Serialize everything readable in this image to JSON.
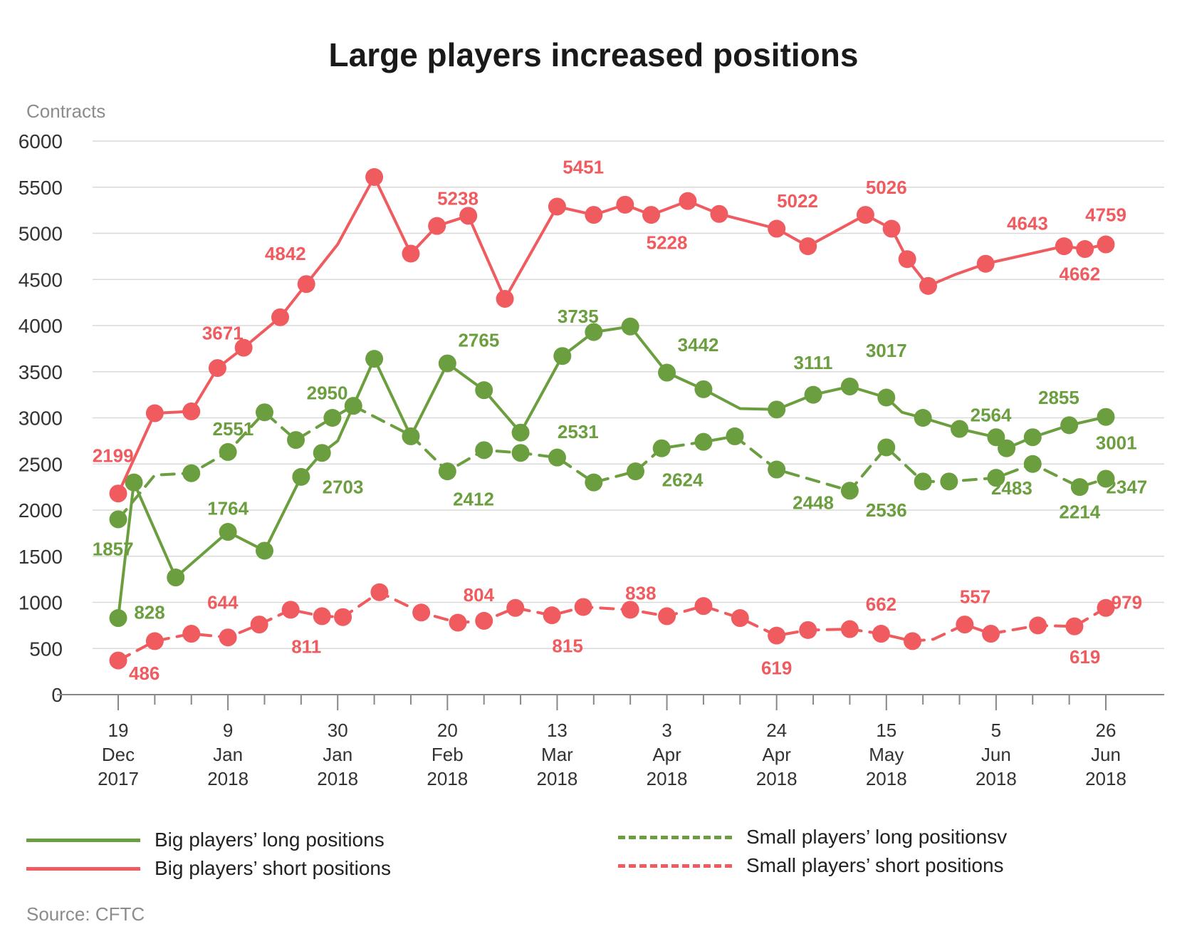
{
  "title": "Large players increased positions",
  "source": "Source: CFTC",
  "colors": {
    "green": "#6a9e3f",
    "red": "#ef5b5f",
    "grid": "#d9d9d9",
    "axis": "#888888",
    "text": "#333333"
  },
  "chart_data": {
    "type": "line",
    "title": "Large players increased positions",
    "ylabel": "Contracts",
    "ylim": [
      0,
      6000
    ],
    "y_ticks": [
      "0",
      "500",
      "1000",
      "1500",
      "2000",
      "2500",
      "3000",
      "3500",
      "4000",
      "4500",
      "5000",
      "5500",
      "6000"
    ],
    "x": [
      "2017-12-19",
      "2017-12-26",
      "2018-01-02",
      "2018-01-09",
      "2018-01-16",
      "2018-01-23",
      "2018-01-30",
      "2018-02-06",
      "2018-02-13",
      "2018-02-20",
      "2018-02-27",
      "2018-03-06",
      "2018-03-13",
      "2018-03-20",
      "2018-03-27",
      "2018-04-03",
      "2018-04-10",
      "2018-04-17",
      "2018-04-24",
      "2018-05-01",
      "2018-05-08",
      "2018-05-15",
      "2018-05-22",
      "2018-05-29",
      "2018-06-05",
      "2018-06-12",
      "2018-06-19",
      "2018-06-26"
    ],
    "x_tick_labels": [
      {
        "day": "19",
        "month": "Dec",
        "year": "2017"
      },
      {
        "day": "9",
        "month": "Jan",
        "year": "2018"
      },
      {
        "day": "30",
        "month": "Jan",
        "year": "2018"
      },
      {
        "day": "20",
        "month": "Feb",
        "year": "2018"
      },
      {
        "day": "13",
        "month": "Mar",
        "year": "2018"
      },
      {
        "day": "3",
        "month": "Apr",
        "year": "2018"
      },
      {
        "day": "24",
        "month": "Apr",
        "year": "2018"
      },
      {
        "day": "15",
        "month": "May",
        "year": "2018"
      },
      {
        "day": "5",
        "month": "Jun",
        "year": "2018"
      },
      {
        "day": "26",
        "month": "Jun",
        "year": "2018"
      }
    ],
    "x_tick_dates": [
      "2017-12-19",
      "2018-01-09",
      "2018-01-30",
      "2018-02-20",
      "2018-03-13",
      "2018-04-03",
      "2018-04-24",
      "2018-05-15",
      "2018-06-05",
      "2018-06-26"
    ],
    "series": [
      {
        "name": "Big players’ long positions",
        "color": "#6a9e3f",
        "dashed": false,
        "points": [
          [
            "2017-12-19",
            830
          ],
          [
            "2017-12-22",
            2300
          ],
          [
            "2017-12-30",
            1270
          ],
          [
            "2018-01-09",
            1764
          ],
          [
            "2018-01-16",
            1560
          ],
          [
            "2018-01-23",
            2360
          ],
          [
            "2018-01-27",
            2620
          ],
          [
            "2018-01-30",
            2750
          ],
          [
            "2018-02-02",
            3130
          ],
          [
            "2018-02-06",
            3640
          ],
          [
            "2018-02-13",
            2800
          ],
          [
            "2018-02-20",
            3590
          ],
          [
            "2018-02-27",
            3300
          ],
          [
            "2018-03-06",
            2840
          ],
          [
            "2018-03-14",
            3670
          ],
          [
            "2018-03-20",
            3930
          ],
          [
            "2018-03-27",
            3990
          ],
          [
            "2018-04-03",
            3490
          ],
          [
            "2018-04-10",
            3310
          ],
          [
            "2018-04-17",
            3100
          ],
          [
            "2018-04-24",
            3090
          ],
          [
            "2018-05-01",
            3250
          ],
          [
            "2018-05-08",
            3340
          ],
          [
            "2018-05-15",
            3220
          ],
          [
            "2018-05-18",
            3060
          ],
          [
            "2018-05-22",
            3000
          ],
          [
            "2018-05-29",
            2880
          ],
          [
            "2018-06-05",
            2790
          ],
          [
            "2018-06-07",
            2670
          ],
          [
            "2018-06-12",
            2790
          ],
          [
            "2018-06-19",
            2920
          ],
          [
            "2018-06-26",
            3010
          ]
        ],
        "markers": [
          "2017-12-19",
          "2017-12-22",
          "2017-12-30",
          "2018-01-09",
          "2018-01-16",
          "2018-01-23",
          "2018-01-27",
          "2018-02-02",
          "2018-02-06",
          "2018-02-13",
          "2018-02-20",
          "2018-02-27",
          "2018-03-06",
          "2018-03-14",
          "2018-03-20",
          "2018-03-27",
          "2018-04-03",
          "2018-04-10",
          "2018-04-24",
          "2018-05-01",
          "2018-05-08",
          "2018-05-15",
          "2018-05-22",
          "2018-05-29",
          "2018-06-05",
          "2018-06-07",
          "2018-06-12",
          "2018-06-19",
          "2018-06-26"
        ],
        "labels": [
          {
            "text": "828",
            "x": "2017-12-25",
            "y": 890
          },
          {
            "text": "1764",
            "x": "2018-01-09",
            "y": 2020
          },
          {
            "text": "2703",
            "x": "2018-01-31",
            "y": 2250
          },
          {
            "text": "2765",
            "x": "2018-02-26",
            "y": 3840
          },
          {
            "text": "3735",
            "x": "2018-03-17",
            "y": 4100
          },
          {
            "text": "3442",
            "x": "2018-04-09",
            "y": 3790
          },
          {
            "text": "3111",
            "x": "2018-05-01",
            "y": 3600
          },
          {
            "text": "3017",
            "x": "2018-05-15",
            "y": 3730
          },
          {
            "text": "2564",
            "x": "2018-06-04",
            "y": 3030
          },
          {
            "text": "2855",
            "x": "2018-06-17",
            "y": 3220
          },
          {
            "text": "3001",
            "x": "2018-06-28",
            "y": 2730
          }
        ]
      },
      {
        "name": "Big players’ short positions",
        "color": "#ef5b5f",
        "dashed": false,
        "points": [
          [
            "2017-12-19",
            2180
          ],
          [
            "2017-12-26",
            3050
          ],
          [
            "2018-01-02",
            3070
          ],
          [
            "2018-01-07",
            3540
          ],
          [
            "2018-01-12",
            3760
          ],
          [
            "2018-01-19",
            4090
          ],
          [
            "2018-01-24",
            4450
          ],
          [
            "2018-01-30",
            4880
          ],
          [
            "2018-02-06",
            5610
          ],
          [
            "2018-02-13",
            4780
          ],
          [
            "2018-02-18",
            5080
          ],
          [
            "2018-02-24",
            5190
          ],
          [
            "2018-03-03",
            4290
          ],
          [
            "2018-03-13",
            5290
          ],
          [
            "2018-03-20",
            5200
          ],
          [
            "2018-03-26",
            5310
          ],
          [
            "2018-03-31",
            5200
          ],
          [
            "2018-04-07",
            5350
          ],
          [
            "2018-04-13",
            5210
          ],
          [
            "2018-04-24",
            5050
          ],
          [
            "2018-04-30",
            4860
          ],
          [
            "2018-05-11",
            5200
          ],
          [
            "2018-05-16",
            5050
          ],
          [
            "2018-05-19",
            4720
          ],
          [
            "2018-05-23",
            4430
          ],
          [
            "2018-05-28",
            4550
          ],
          [
            "2018-06-03",
            4670
          ],
          [
            "2018-06-18",
            4860
          ],
          [
            "2018-06-22",
            4830
          ],
          [
            "2018-06-26",
            4880
          ]
        ],
        "markers": [
          "2017-12-19",
          "2017-12-26",
          "2018-01-02",
          "2018-01-07",
          "2018-01-12",
          "2018-01-19",
          "2018-01-24",
          "2018-02-06",
          "2018-02-13",
          "2018-02-18",
          "2018-02-24",
          "2018-03-03",
          "2018-03-13",
          "2018-03-20",
          "2018-03-26",
          "2018-03-31",
          "2018-04-07",
          "2018-04-13",
          "2018-04-24",
          "2018-04-30",
          "2018-05-11",
          "2018-05-16",
          "2018-05-19",
          "2018-05-23",
          "2018-06-03",
          "2018-06-18",
          "2018-06-22",
          "2018-06-26"
        ],
        "labels": [
          {
            "text": "2199",
            "x": "2017-12-18",
            "y": 2590
          },
          {
            "text": "3671",
            "x": "2018-01-08",
            "y": 3920
          },
          {
            "text": "4842",
            "x": "2018-01-20",
            "y": 4780
          },
          {
            "text": "5238",
            "x": "2018-02-22",
            "y": 5380
          },
          {
            "text": "5451",
            "x": "2018-03-18",
            "y": 5720
          },
          {
            "text": "5228",
            "x": "2018-04-03",
            "y": 4900
          },
          {
            "text": "5022",
            "x": "2018-04-28",
            "y": 5350
          },
          {
            "text": "5026",
            "x": "2018-05-15",
            "y": 5500
          },
          {
            "text": "4643",
            "x": "2018-06-11",
            "y": 5110
          },
          {
            "text": "4662",
            "x": "2018-06-21",
            "y": 4560
          },
          {
            "text": "4759",
            "x": "2018-06-26",
            "y": 5200
          }
        ]
      },
      {
        "name": "Small players’ long positionsv",
        "color": "#6a9e3f",
        "dashed": true,
        "points": [
          [
            "2017-12-19",
            1900
          ],
          [
            "2017-12-26",
            2380
          ],
          [
            "2018-01-02",
            2400
          ],
          [
            "2018-01-09",
            2630
          ],
          [
            "2018-01-16",
            3060
          ],
          [
            "2018-01-22",
            2760
          ],
          [
            "2018-01-29",
            3000
          ],
          [
            "2018-02-02",
            3130
          ],
          [
            "2018-02-13",
            2810
          ],
          [
            "2018-02-20",
            2420
          ],
          [
            "2018-02-27",
            2650
          ],
          [
            "2018-03-06",
            2620
          ],
          [
            "2018-03-13",
            2570
          ],
          [
            "2018-03-20",
            2300
          ],
          [
            "2018-03-28",
            2420
          ],
          [
            "2018-04-02",
            2670
          ],
          [
            "2018-04-10",
            2740
          ],
          [
            "2018-04-16",
            2800
          ],
          [
            "2018-04-24",
            2440
          ],
          [
            "2018-05-08",
            2210
          ],
          [
            "2018-05-15",
            2680
          ],
          [
            "2018-05-22",
            2310
          ],
          [
            "2018-05-27",
            2310
          ],
          [
            "2018-06-05",
            2350
          ],
          [
            "2018-06-12",
            2500
          ],
          [
            "2018-06-21",
            2250
          ],
          [
            "2018-06-26",
            2340
          ]
        ],
        "markers": [
          "2017-12-19",
          "2018-01-02",
          "2018-01-09",
          "2018-01-16",
          "2018-01-22",
          "2018-01-29",
          "2018-02-20",
          "2018-02-27",
          "2018-03-06",
          "2018-03-13",
          "2018-03-20",
          "2018-03-28",
          "2018-04-02",
          "2018-04-10",
          "2018-04-16",
          "2018-04-24",
          "2018-05-08",
          "2018-05-15",
          "2018-05-22",
          "2018-05-27",
          "2018-06-05",
          "2018-06-12",
          "2018-06-21",
          "2018-06-26"
        ],
        "labels": [
          {
            "text": "1857",
            "x": "2017-12-18",
            "y": 1580
          },
          {
            "text": "2551",
            "x": "2018-01-10",
            "y": 2880
          },
          {
            "text": "2950",
            "x": "2018-01-28",
            "y": 3270
          },
          {
            "text": "2412",
            "x": "2018-02-25",
            "y": 2120
          },
          {
            "text": "2531",
            "x": "2018-03-17",
            "y": 2850
          },
          {
            "text": "2624",
            "x": "2018-04-06",
            "y": 2330
          },
          {
            "text": "2448",
            "x": "2018-05-01",
            "y": 2080
          },
          {
            "text": "2536",
            "x": "2018-05-15",
            "y": 2000
          },
          {
            "text": "2483",
            "x": "2018-06-08",
            "y": 2240
          },
          {
            "text": "2214",
            "x": "2018-06-21",
            "y": 1980
          },
          {
            "text": "2347",
            "x": "2018-06-30",
            "y": 2250
          }
        ]
      },
      {
        "name": "Small players’ short positions",
        "color": "#ef5b5f",
        "dashed": true,
        "points": [
          [
            "2017-12-19",
            370
          ],
          [
            "2017-12-26",
            580
          ],
          [
            "2018-01-02",
            660
          ],
          [
            "2018-01-09",
            620
          ],
          [
            "2018-01-15",
            760
          ],
          [
            "2018-01-21",
            920
          ],
          [
            "2018-01-27",
            850
          ],
          [
            "2018-01-31",
            840
          ],
          [
            "2018-02-07",
            1110
          ],
          [
            "2018-02-15",
            890
          ],
          [
            "2018-02-22",
            780
          ],
          [
            "2018-02-27",
            800
          ],
          [
            "2018-03-05",
            940
          ],
          [
            "2018-03-12",
            860
          ],
          [
            "2018-03-18",
            950
          ],
          [
            "2018-03-27",
            920
          ],
          [
            "2018-04-03",
            850
          ],
          [
            "2018-04-10",
            960
          ],
          [
            "2018-04-17",
            830
          ],
          [
            "2018-04-24",
            640
          ],
          [
            "2018-04-30",
            700
          ],
          [
            "2018-05-08",
            710
          ],
          [
            "2018-05-14",
            660
          ],
          [
            "2018-05-20",
            580
          ],
          [
            "2018-05-24",
            600
          ],
          [
            "2018-05-30",
            760
          ],
          [
            "2018-06-04",
            660
          ],
          [
            "2018-06-13",
            750
          ],
          [
            "2018-06-20",
            740
          ],
          [
            "2018-06-26",
            940
          ]
        ],
        "markers": [
          "2017-12-19",
          "2017-12-26",
          "2018-01-02",
          "2018-01-09",
          "2018-01-15",
          "2018-01-21",
          "2018-01-27",
          "2018-01-31",
          "2018-02-07",
          "2018-02-15",
          "2018-02-22",
          "2018-02-27",
          "2018-03-05",
          "2018-03-12",
          "2018-03-18",
          "2018-03-27",
          "2018-04-03",
          "2018-04-10",
          "2018-04-17",
          "2018-04-24",
          "2018-04-30",
          "2018-05-08",
          "2018-05-14",
          "2018-05-20",
          "2018-05-30",
          "2018-06-04",
          "2018-06-13",
          "2018-06-20",
          "2018-06-26"
        ],
        "labels": [
          {
            "text": "486",
            "x": "2017-12-24",
            "y": 230
          },
          {
            "text": "644",
            "x": "2018-01-08",
            "y": 1000
          },
          {
            "text": "811",
            "x": "2018-01-24",
            "y": 520
          },
          {
            "text": "804",
            "x": "2018-02-26",
            "y": 1080
          },
          {
            "text": "815",
            "x": "2018-03-15",
            "y": 530
          },
          {
            "text": "838",
            "x": "2018-03-29",
            "y": 1100
          },
          {
            "text": "619",
            "x": "2018-04-24",
            "y": 290
          },
          {
            "text": "662",
            "x": "2018-05-14",
            "y": 980
          },
          {
            "text": "557",
            "x": "2018-06-01",
            "y": 1060
          },
          {
            "text": "619",
            "x": "2018-06-22",
            "y": 410
          },
          {
            "text": "979",
            "x": "2018-06-30",
            "y": 1000
          }
        ]
      }
    ],
    "legend": [
      {
        "label": "Big players’ long positions",
        "color": "#6a9e3f",
        "dashed": false
      },
      {
        "label": "Big players’ short positions",
        "color": "#ef5b5f",
        "dashed": false
      },
      {
        "label": "Small players’ long positionsv",
        "color": "#6a9e3f",
        "dashed": true
      },
      {
        "label": "Small players’ short positions",
        "color": "#ef5b5f",
        "dashed": true
      }
    ],
    "legend_position": "bottom",
    "grid": true
  }
}
